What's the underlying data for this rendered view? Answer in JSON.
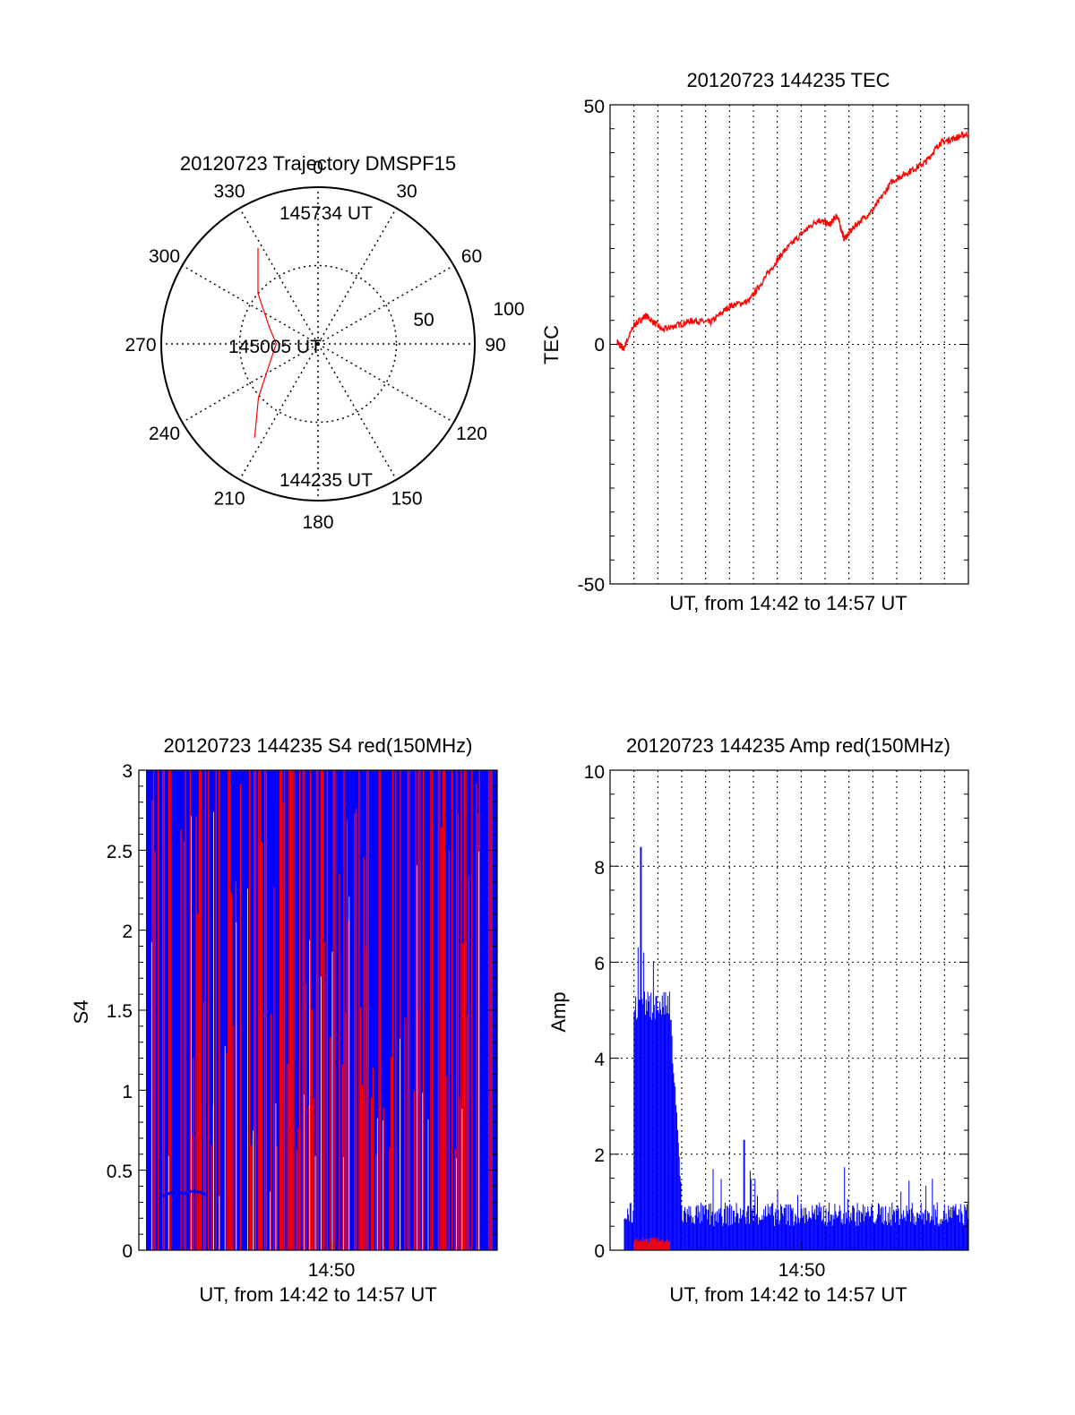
{
  "colors": {
    "red": "#ff0000",
    "blue": "#0000ff",
    "axis": "#000000",
    "grid": "#000000",
    "background": "#ffffff"
  },
  "chart_data": [
    {
      "type": "polar",
      "title": "20120723 Trajectory DMSPF15",
      "angle_labels": [
        "0",
        "30",
        "60",
        "90",
        "120",
        "150",
        "180",
        "210",
        "240",
        "270",
        "300",
        "330"
      ],
      "radial_labels": [
        "50",
        "100"
      ],
      "annotations": [
        "145734 UT",
        "145005 UT",
        "144235 UT"
      ],
      "series": [
        {
          "color": "red",
          "points": [
            {
              "azimuth": 328,
              "elevation": 25
            },
            {
              "azimuth": 310,
              "elevation": 45
            },
            {
              "azimuth": 290,
              "elevation": 60
            },
            {
              "azimuth": 270,
              "elevation": 66
            },
            {
              "azimuth": 248,
              "elevation": 60
            },
            {
              "azimuth": 228,
              "elevation": 44
            },
            {
              "azimuth": 214,
              "elevation": 25
            }
          ]
        }
      ]
    },
    {
      "type": "line",
      "title": "20120723 144235 TEC",
      "xlabel": "UT, from 14:42 to 14:57 UT",
      "ylabel": "TEC",
      "xlim": [
        0,
        15
      ],
      "ylim": [
        -50,
        50
      ],
      "yticks": [
        "50",
        "0",
        "-50"
      ],
      "grid": true,
      "series": [
        {
          "color": "red",
          "x": [
            0.3,
            0.55,
            1.0,
            1.5,
            2.2,
            2.8,
            3.5,
            4.2,
            5.0,
            5.8,
            6.5,
            7.2,
            8.0,
            8.7,
            9.2,
            9.5,
            9.8,
            10.3,
            11.0,
            11.8,
            12.5,
            13.2,
            13.8,
            14.4,
            15.0
          ],
          "y": [
            0.5,
            -1,
            4,
            6,
            3,
            4,
            5,
            4.5,
            8,
            9,
            14,
            19,
            23,
            26,
            25,
            27,
            22,
            25,
            28,
            34,
            36,
            38,
            42,
            43,
            44
          ]
        }
      ]
    },
    {
      "type": "line",
      "title": "20120723 144235 S4 red(150MHz)",
      "xlabel": "UT, from 14:42 to 14:57 UT",
      "ylabel": "S4",
      "xlim": [
        0,
        15
      ],
      "ylim": [
        0,
        3
      ],
      "xticks": [
        "14:50"
      ],
      "yticks": [
        "0",
        "0.5",
        "1",
        "1.5",
        "2",
        "2.5",
        "3"
      ],
      "series": [
        {
          "color": "red",
          "description": "",
          "x": [
            0.3,
            15.0
          ],
          "y": [
            0,
            3
          ]
        },
        {
          "color": "blue",
          "x": [
            1.0,
            1.3,
            1.6,
            1.9,
            2.2,
            2.5,
            2.8
          ],
          "y": [
            0.33,
            0.35,
            0.36,
            0.34,
            0.37,
            0.35,
            0.36
          ]
        }
      ]
    },
    {
      "type": "line",
      "title": "20120723 144235 Amp red(150MHz)",
      "xlabel": "UT, from 14:42 to 14:57 UT",
      "ylabel": "Amp",
      "xlim": [
        0,
        15
      ],
      "ylim": [
        0,
        10
      ],
      "xticks": [
        "14:50"
      ],
      "yticks": [
        "0",
        "2",
        "4",
        "6",
        "8",
        "10"
      ],
      "grid": true,
      "series": [
        {
          "color": "blue",
          "x": [
            1.0,
            1.3,
            1.5,
            2.0,
            2.5,
            2.8,
            3.2,
            5.5,
            6.3,
            9.0,
            15.0
          ],
          "y": [
            6.5,
            8.4,
            5.5,
            6.0,
            5.0,
            4.8,
            1.2,
            2.3,
            1.4,
            0.8,
            1.6
          ]
        },
        {
          "color": "red",
          "x": [
            1.0,
            1.5,
            2.0,
            2.5
          ],
          "y": [
            0.2,
            0.25,
            0.2,
            0.22
          ]
        }
      ]
    }
  ]
}
